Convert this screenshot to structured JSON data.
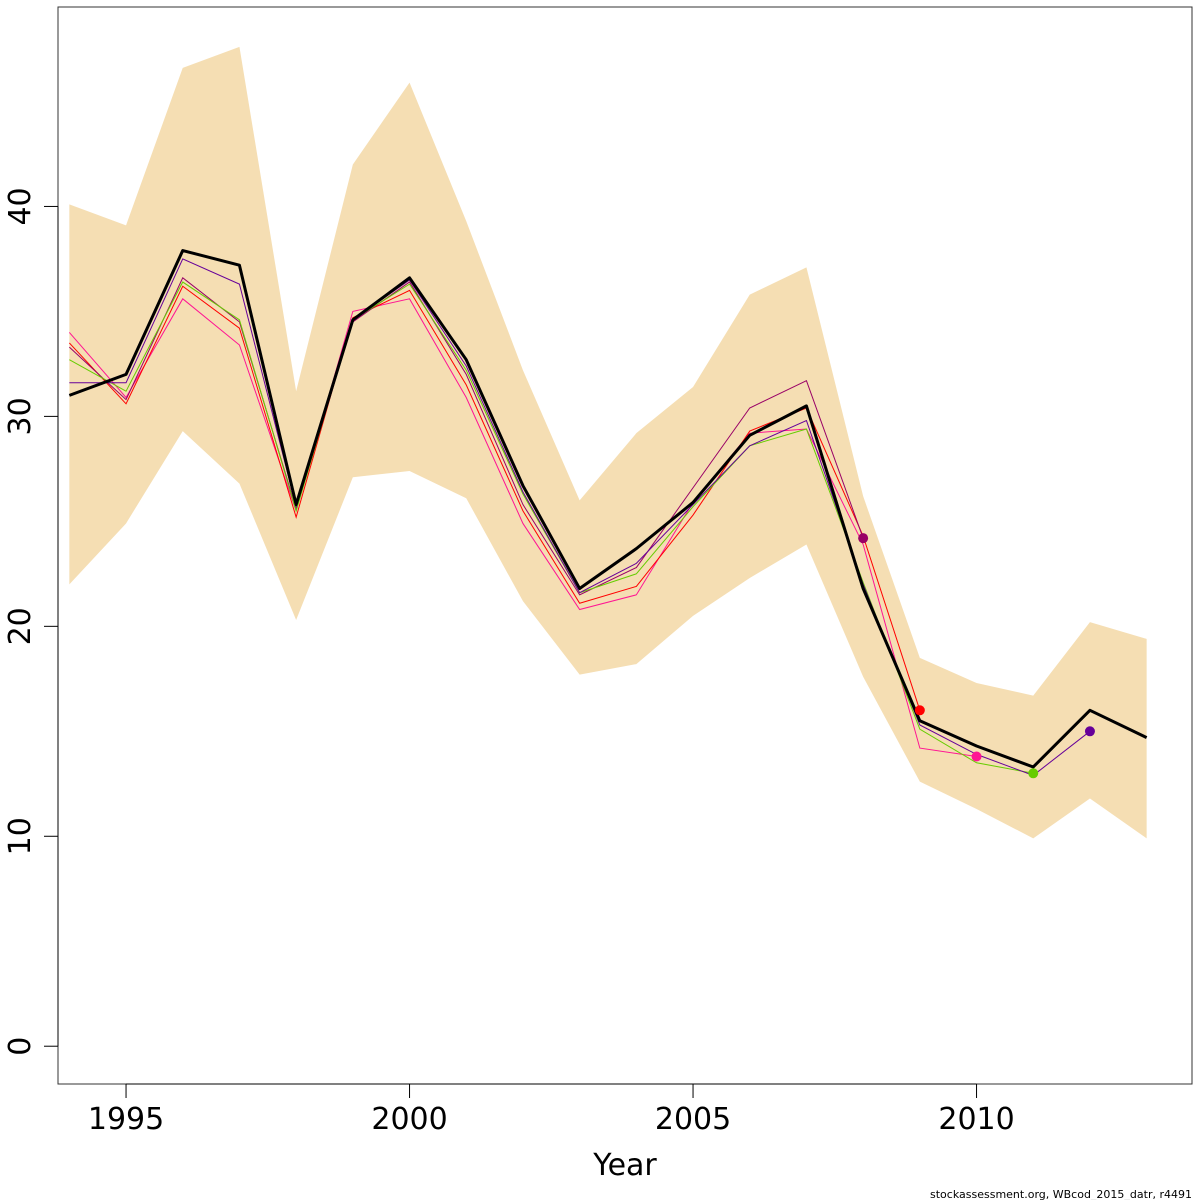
{
  "chart_data": {
    "type": "line",
    "xlabel": "Year",
    "ylabel": "",
    "xlim": [
      1993.8,
      2013.8
    ],
    "ylim": [
      -1.8,
      49.5
    ],
    "x_ticks": [
      1995,
      2000,
      2005,
      2010
    ],
    "y_ticks": [
      0,
      10,
      20,
      30,
      40
    ],
    "grid": false,
    "legend": "none",
    "confidence_band": {
      "color": "#F5DEB3",
      "x": [
        1994,
        1995,
        1996,
        1997,
        1998,
        1999,
        2000,
        2001,
        2002,
        2003,
        2004,
        2005,
        2006,
        2007,
        2008,
        2009,
        2010,
        2011,
        2012,
        2013
      ],
      "upper": [
        40.1,
        39.1,
        46.6,
        47.6,
        31.2,
        42.0,
        45.9,
        39.3,
        32.2,
        26.0,
        29.2,
        31.4,
        35.8,
        37.1,
        26.2,
        18.5,
        17.3,
        16.7,
        20.2,
        19.4
      ],
      "lower": [
        22.0,
        24.9,
        29.3,
        26.8,
        20.3,
        27.1,
        27.4,
        26.1,
        21.2,
        17.7,
        18.2,
        20.5,
        22.3,
        23.9,
        17.6,
        12.6,
        11.3,
        9.9,
        11.8,
        9.9
      ]
    },
    "main_series": {
      "color": "#000000",
      "x": [
        1994,
        1995,
        1996,
        1997,
        1998,
        1999,
        2000,
        2001,
        2002,
        2003,
        2004,
        2005,
        2006,
        2007,
        2008,
        2009,
        2010,
        2011,
        2012,
        2013
      ],
      "values": [
        31.0,
        32.0,
        37.9,
        37.2,
        25.8,
        34.6,
        36.6,
        32.7,
        26.7,
        21.8,
        23.7,
        25.9,
        29.1,
        30.5,
        21.8,
        15.5,
        14.3,
        13.3,
        16.0,
        14.7
      ]
    },
    "retro_series": [
      {
        "color": "#FF1493",
        "x": [
          1994,
          1995,
          1996,
          1997,
          1998,
          1999,
          2000,
          2001,
          2002,
          2003,
          2004,
          2005,
          2006,
          2007,
          2008,
          2009,
          2010
        ],
        "values": [
          34.0,
          30.9,
          35.6,
          33.4,
          25.5,
          35.0,
          35.6,
          30.9,
          24.9,
          20.8,
          21.5,
          25.9,
          29.2,
          29.4,
          23.9,
          14.2,
          13.8
        ],
        "end_point": [
          2010,
          13.8
        ]
      },
      {
        "color": "#FF0000",
        "x": [
          1994,
          1995,
          1996,
          1997,
          1998,
          1999,
          2000,
          2001,
          2002,
          2003,
          2004,
          2005,
          2006,
          2007,
          2008,
          2009
        ],
        "values": [
          33.5,
          30.6,
          36.2,
          34.2,
          25.2,
          34.7,
          36.0,
          31.5,
          25.5,
          21.1,
          21.9,
          25.3,
          29.3,
          30.4,
          24.3,
          16.0
        ],
        "end_point": [
          2009,
          16.0
        ]
      },
      {
        "color": "#990066",
        "x": [
          1994,
          1995,
          1996,
          1997,
          1998,
          1999,
          2000,
          2001,
          2002,
          2003,
          2004,
          2005,
          2006,
          2007,
          2008
        ],
        "values": [
          33.3,
          30.8,
          36.6,
          34.5,
          25.6,
          34.5,
          36.4,
          32.0,
          25.8,
          21.5,
          22.8,
          26.6,
          30.4,
          31.7,
          24.2
        ],
        "end_point": [
          2008,
          24.2
        ]
      },
      {
        "color": "#66CC00",
        "x": [
          1994,
          1995,
          1996,
          1997,
          1998,
          1999,
          2000,
          2001,
          2002,
          2003,
          2004,
          2005,
          2006,
          2007,
          2008,
          2009,
          2010,
          2011
        ],
        "values": [
          32.7,
          31.2,
          36.4,
          34.6,
          25.5,
          34.6,
          36.3,
          32.2,
          26.3,
          21.6,
          22.5,
          25.7,
          28.6,
          29.4,
          22.1,
          15.1,
          13.5,
          13.0
        ],
        "end_point": [
          2011,
          13.0
        ]
      },
      {
        "color": "#660099",
        "x": [
          1994,
          1995,
          1996,
          1997,
          1998,
          1999,
          2000,
          2001,
          2002,
          2003,
          2004,
          2005,
          2006,
          2007,
          2008,
          2009,
          2010,
          2011,
          2012
        ],
        "values": [
          31.6,
          31.6,
          37.5,
          36.3,
          25.7,
          34.6,
          36.5,
          32.4,
          26.4,
          21.6,
          23.0,
          25.8,
          28.6,
          29.8,
          22.0,
          15.3,
          13.9,
          12.9,
          15.0
        ],
        "end_point": [
          2012,
          15.0
        ]
      }
    ],
    "credit": "stockassessment.org, WBcod_2015_datr, r4491"
  }
}
